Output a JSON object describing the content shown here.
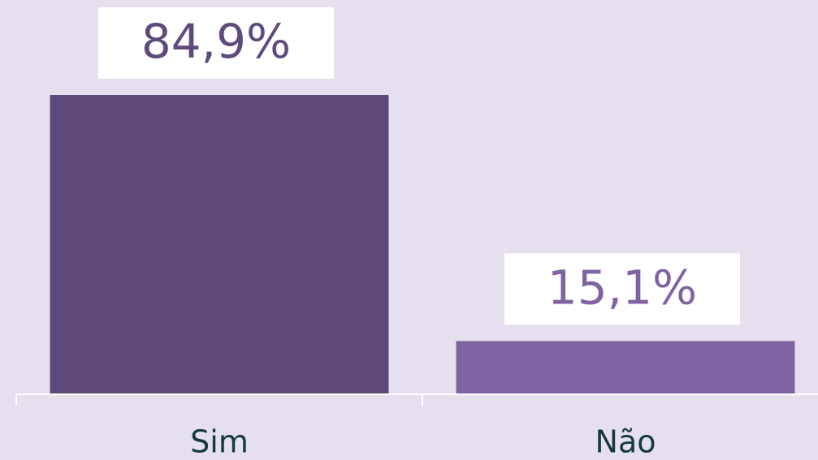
{
  "chart_data": {
    "type": "bar",
    "categories": [
      "Sim",
      "Não"
    ],
    "values": [
      84.9,
      15.1
    ],
    "value_labels": [
      "84,9%",
      "15,1%"
    ],
    "colors": [
      "#5f4b7b",
      "#8064a2"
    ]
  }
}
